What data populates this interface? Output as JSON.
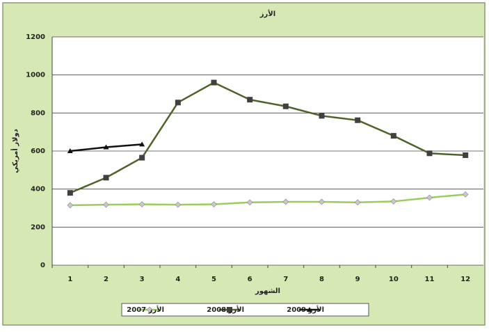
{
  "chart_data": {
    "type": "line",
    "title": "الأرز",
    "x_label": "الشهور",
    "y_label": "دولار أمريكي",
    "categories": [
      "1",
      "2",
      "3",
      "4",
      "5",
      "6",
      "7",
      "8",
      "9",
      "10",
      "11",
      "12"
    ],
    "series": [
      {
        "name": "الأرز 2007",
        "color": "#9acd5a",
        "marker_color": "#c8c8c8",
        "marker": "diamond",
        "values": [
          315,
          318,
          320,
          318,
          320,
          330,
          333,
          333,
          330,
          335,
          355,
          372
        ]
      },
      {
        "name": "الأرز 2008",
        "color": "#4f6228",
        "marker_color": "#404040",
        "marker": "square",
        "values": [
          380,
          460,
          565,
          855,
          960,
          870,
          835,
          785,
          762,
          680,
          588,
          578
        ]
      },
      {
        "name": "الأرز 2009",
        "color": "#111111",
        "marker_color": "#111111",
        "marker": "triangle",
        "values": [
          600,
          620,
          635,
          null,
          null,
          null,
          null,
          null,
          null,
          null,
          null,
          null
        ]
      }
    ],
    "ylim": [
      0,
      1200
    ],
    "yticks": [
      0,
      200,
      400,
      600,
      800,
      1000,
      1200
    ],
    "grid": true
  }
}
